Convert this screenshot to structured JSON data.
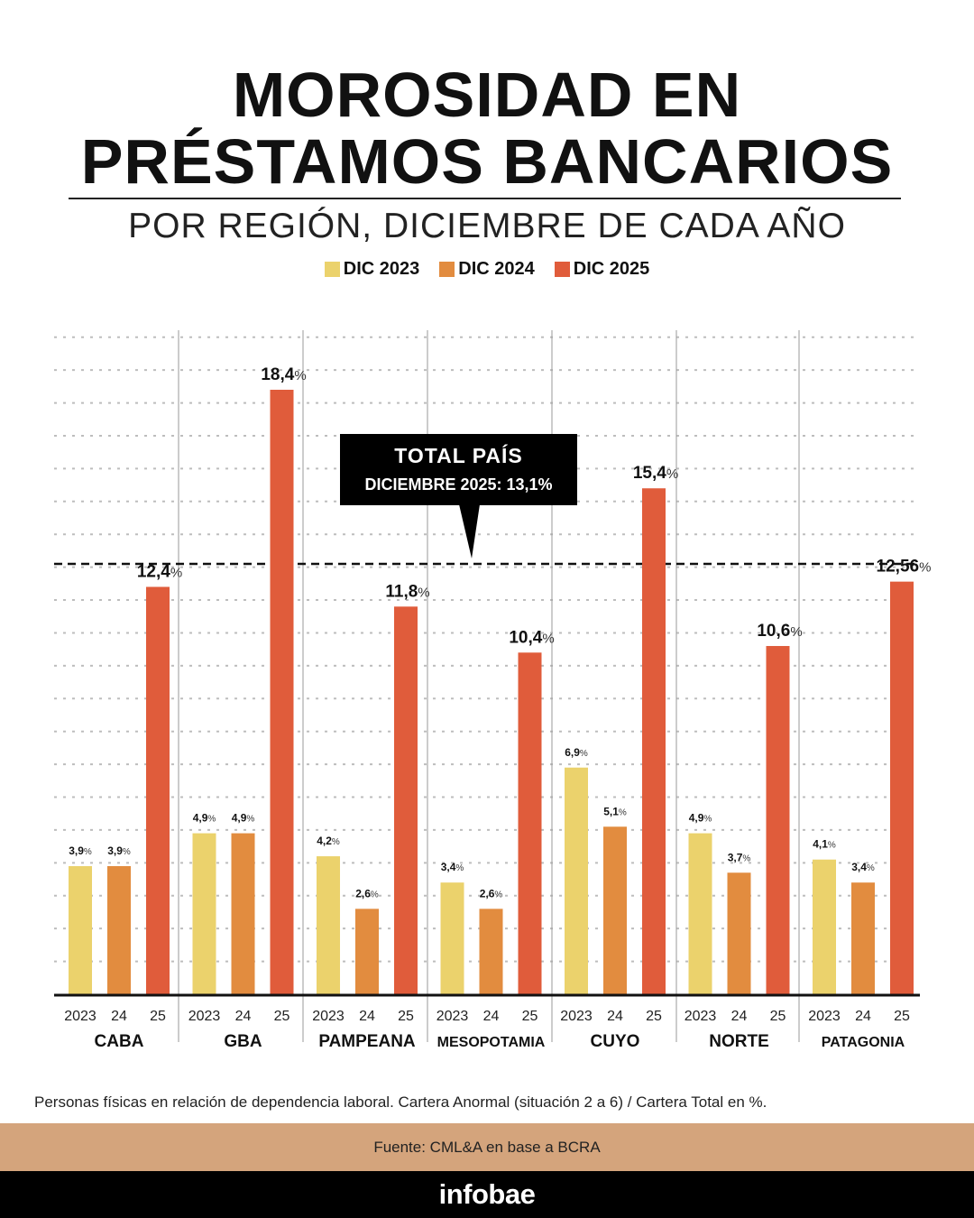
{
  "header": {
    "title_line1": "MOROSIDAD EN",
    "title_line2": "PRÉSTAMOS BANCARIOS",
    "subtitle": "POR REGIÓN, DICIEMBRE DE CADA AÑO"
  },
  "legend": [
    {
      "label": "DIC 2023",
      "color": "#ebd26c"
    },
    {
      "label": "DIC 2024",
      "color": "#e28c3f"
    },
    {
      "label": "DIC 2025",
      "color": "#e05c3b"
    }
  ],
  "chart_data": {
    "type": "bar",
    "title": "MOROSIDAD EN PRÉSTAMOS BANCARIOS",
    "subtitle": "POR REGIÓN, DICIEMBRE DE CADA AÑO",
    "xlabel": "",
    "ylabel": "",
    "ylim": [
      0,
      20
    ],
    "grid": true,
    "legend_position": "top-center",
    "categories": [
      "CABA",
      "GBA",
      "PAMPEANA",
      "MESOPOTAMIA",
      "CUYO",
      "NORTE",
      "PATAGONIA"
    ],
    "bar_tick_labels": [
      "2023",
      "24",
      "25"
    ],
    "series": [
      {
        "name": "DIC 2023",
        "color": "#ebd26c",
        "values": [
          3.9,
          4.9,
          4.2,
          3.4,
          6.9,
          4.9,
          4.1
        ],
        "labels": [
          "3,9",
          "4,9",
          "4,2",
          "3,4",
          "6,9",
          "4,9",
          "4,1"
        ]
      },
      {
        "name": "DIC 2024",
        "color": "#e28c3f",
        "values": [
          3.9,
          4.9,
          2.6,
          2.6,
          5.1,
          3.7,
          3.4
        ],
        "labels": [
          "3,9",
          "4,9",
          "2,6",
          "2,6",
          "5,1",
          "3,7",
          "3,4"
        ]
      },
      {
        "name": "DIC 2025",
        "color": "#e05c3b",
        "values": [
          12.4,
          18.4,
          11.8,
          10.4,
          15.4,
          10.6,
          12.56
        ],
        "labels": [
          "12,4",
          "18,4",
          "11,8",
          "10,4",
          "15,4",
          "10,6",
          "12,56"
        ]
      }
    ],
    "percent_sign": "%",
    "reference_line": {
      "value": 13.1,
      "label_line1": "TOTAL PAÍS",
      "label_line2": "DICIEMBRE 2025: 13,1%"
    }
  },
  "footnote": "Personas físicas en relación de dependencia laboral. Cartera Anormal (situación 2 a 6) / Cartera Total en %.",
  "source": "Fuente: CML&A en base a BCRA",
  "logo": "infobae"
}
